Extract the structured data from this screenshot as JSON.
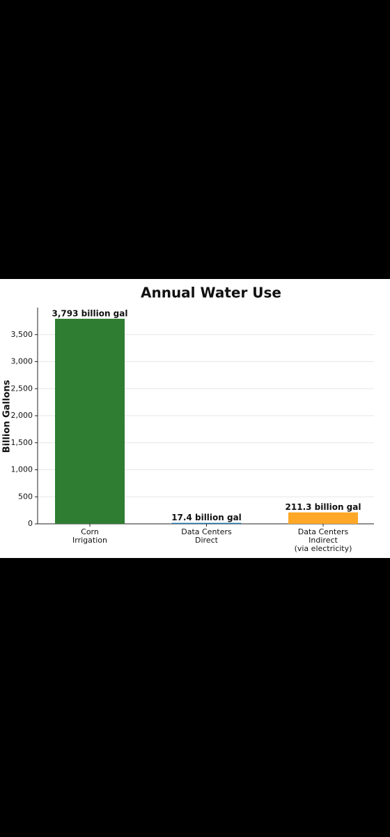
{
  "chart_data": {
    "type": "bar",
    "title": "Annual Water Use",
    "y_label": "Billion Gallons",
    "categories": [
      [
        "Corn",
        "Irrigation"
      ],
      [
        "Data Centers",
        "Direct"
      ],
      [
        "Data Centers",
        "Indirect",
        "(via electricity)"
      ]
    ],
    "values": [
      3793,
      17.4,
      211.3
    ],
    "value_labels": [
      "3,793 billion gal",
      "17.4 billion gal",
      "211.3 billion gal"
    ],
    "colors": [
      "#2e7d32",
      "#1f77b4",
      "#ffa726"
    ],
    "ylim": [
      0,
      4000
    ],
    "yticks": [
      0,
      500,
      {
        "value": 1000,
        "label": "1,000"
      },
      {
        "value": 1500,
        "label": "1,500"
      },
      {
        "value": 2000,
        "label": "2,000"
      },
      {
        "value": 2500,
        "label": "2,500"
      },
      {
        "value": 3000,
        "label": "3,000"
      },
      {
        "value": 3500,
        "label": "3,500"
      }
    ],
    "grid": true
  }
}
